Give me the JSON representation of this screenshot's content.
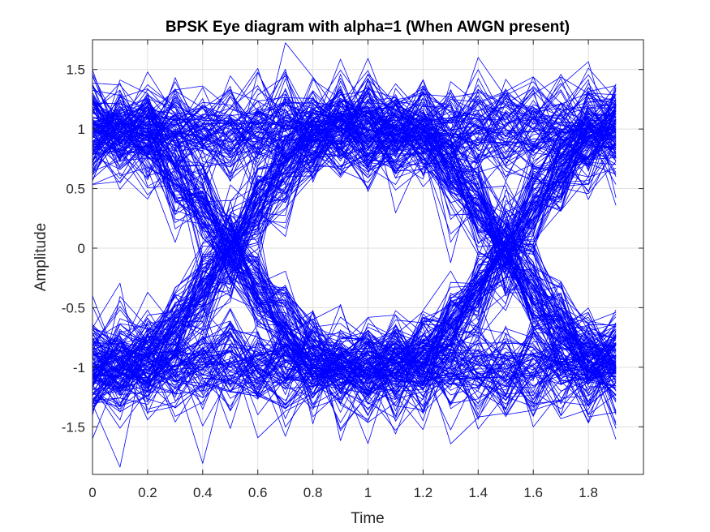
{
  "chart_data": {
    "type": "line",
    "title": "BPSK Eye diagram with alpha=1 (When AWGN present)",
    "xlabel": "Time",
    "ylabel": "Amplitude",
    "xlim": [
      0,
      2
    ],
    "ylim": [
      -1.9,
      1.75
    ],
    "xticks": [
      "0",
      "0.2",
      "0.4",
      "0.6",
      "0.8",
      "1",
      "1.2",
      "1.4",
      "1.6",
      "1.8"
    ],
    "xtick_values": [
      0,
      0.2,
      0.4,
      0.6,
      0.8,
      1.0,
      1.2,
      1.4,
      1.6,
      1.8
    ],
    "yticks": [
      "1.5",
      "1",
      "0.5",
      "0",
      "-0.5",
      "-1",
      "-1.5"
    ],
    "ytick_values": [
      1.5,
      1.0,
      0.5,
      0.0,
      -0.5,
      -1.0,
      -1.5
    ],
    "grid": true,
    "line_color": "#0000ff",
    "trace": {
      "x_start": 0,
      "x_end": 1.9,
      "x_step": 0.1,
      "trace_count": 300,
      "zero_crossings": [
        0.5,
        1.5
      ],
      "signal_levels": [
        1,
        -1
      ]
    },
    "series": [
      {
        "values": [
          1.0,
          1.0,
          1.0,
          1.0,
          1.0,
          1.0,
          1.0,
          1.0,
          1.0,
          1.0,
          1.0,
          1.0,
          1.0,
          1.0,
          1.0,
          1.0,
          1.0,
          1.0,
          1.0,
          1.0
        ]
      },
      {
        "values": [
          1.0,
          0.98,
          0.9,
          0.65,
          0.35,
          0.0,
          -0.35,
          -0.65,
          -0.9,
          -0.98,
          -1.0,
          -1.0,
          -1.0,
          -1.0,
          -1.0,
          -1.0,
          -1.0,
          -1.0,
          -1.0,
          -1.0
        ]
      },
      {
        "values": [
          -1.0,
          -0.98,
          -0.9,
          -0.65,
          -0.35,
          0.0,
          0.35,
          0.65,
          0.9,
          0.98,
          1.0,
          0.98,
          0.9,
          0.65,
          0.35,
          0.0,
          -0.35,
          -0.65,
          -0.9,
          -0.98
        ]
      },
      {
        "values": [
          -1.0,
          -1.0,
          -1.0,
          -1.0,
          -1.0,
          -1.0,
          -1.0,
          -1.0,
          -1.0,
          -1.0,
          -1.0,
          -0.98,
          -0.9,
          -0.65,
          -0.35,
          0.0,
          0.35,
          0.65,
          0.9,
          0.98
        ]
      }
    ]
  }
}
